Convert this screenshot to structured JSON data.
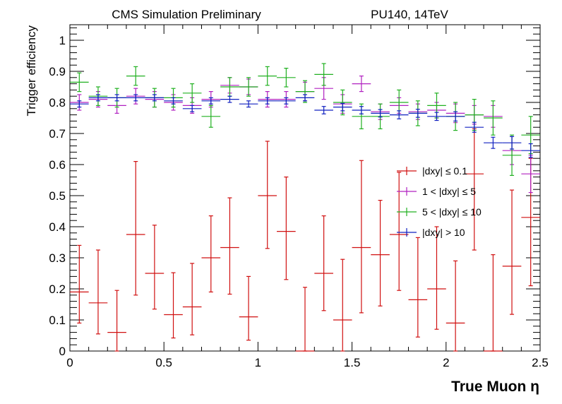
{
  "header": {
    "left": "CMS Simulation Preliminary",
    "right": "PU140, 14TeV"
  },
  "chart_data": {
    "type": "scatter",
    "xlabel": "True Muon  η",
    "ylabel": "Trigger efficiency",
    "xlim": [
      0,
      2.5
    ],
    "ylim": [
      0,
      1.05
    ],
    "x_ticks": [
      "0",
      "0.5",
      "1",
      "1.5",
      "2",
      "2.5"
    ],
    "y_ticks": [
      "0",
      "0.1",
      "0.2",
      "0.3",
      "0.4",
      "0.5",
      "0.6",
      "0.7",
      "0.8",
      "0.9",
      "1"
    ],
    "x": [
      0.05,
      0.15,
      0.25,
      0.35,
      0.45,
      0.55,
      0.65,
      0.75,
      0.85,
      0.95,
      1.05,
      1.15,
      1.25,
      1.35,
      1.45,
      1.55,
      1.65,
      1.75,
      1.85,
      1.95,
      2.05,
      2.15,
      2.25,
      2.35,
      2.45
    ],
    "bin_half_width": 0.05,
    "grid": false,
    "legend_position": "right-middle",
    "series": [
      {
        "name": "|dxy| ≤ 0.1",
        "color": "#d01010",
        "values": [
          0.19,
          0.155,
          0.06,
          0.375,
          0.25,
          0.117,
          0.142,
          0.3,
          0.333,
          0.11,
          0.5,
          0.385,
          0.0,
          0.25,
          0.1,
          0.333,
          0.31,
          0.375,
          0.165,
          0.2,
          0.09,
          0.57,
          0.0,
          0.273,
          0.43
        ],
        "err_low": [
          0.1,
          0.1,
          0.06,
          0.195,
          0.115,
          0.075,
          0.09,
          0.11,
          0.15,
          0.075,
          0.17,
          0.155,
          0.0,
          0.12,
          0.1,
          0.21,
          0.165,
          0.18,
          0.12,
          0.13,
          0.09,
          0.245,
          0.0,
          0.155,
          0.22
        ],
        "err_high": [
          0.15,
          0.17,
          0.135,
          0.235,
          0.155,
          0.135,
          0.14,
          0.135,
          0.16,
          0.13,
          0.175,
          0.175,
          0.205,
          0.185,
          0.195,
          0.28,
          0.175,
          0.2,
          0.2,
          0.2,
          0.2,
          0.145,
          0.31,
          0.245,
          0.19
        ]
      },
      {
        "name": "1 < |dxy| ≤ 5",
        "color": "#b020c0",
        "values": [
          0.8,
          0.81,
          0.79,
          0.82,
          0.81,
          0.8,
          0.79,
          0.81,
          0.855,
          0.85,
          0.81,
          0.81,
          0.835,
          0.845,
          0.795,
          0.86,
          0.77,
          0.79,
          0.77,
          0.775,
          0.765,
          0.76,
          0.755,
          0.645,
          0.57
        ],
        "err_low": [
          0.025,
          0.025,
          0.025,
          0.025,
          0.025,
          0.025,
          0.025,
          0.025,
          0.025,
          0.025,
          0.025,
          0.025,
          0.03,
          0.035,
          0.03,
          0.025,
          0.025,
          0.025,
          0.025,
          0.025,
          0.03,
          0.03,
          0.035,
          0.045,
          0.06
        ],
        "err_high": [
          0.025,
          0.025,
          0.025,
          0.025,
          0.025,
          0.025,
          0.025,
          0.025,
          0.025,
          0.025,
          0.025,
          0.025,
          0.03,
          0.035,
          0.03,
          0.025,
          0.025,
          0.025,
          0.025,
          0.025,
          0.03,
          0.03,
          0.035,
          0.045,
          0.06
        ]
      },
      {
        "name": "5 < |dxy| ≤ 10",
        "color": "#20b020",
        "values": [
          0.865,
          0.82,
          0.815,
          0.885,
          0.815,
          0.815,
          0.83,
          0.755,
          0.85,
          0.85,
          0.885,
          0.88,
          0.835,
          0.89,
          0.8,
          0.755,
          0.755,
          0.8,
          0.765,
          0.79,
          0.755,
          0.76,
          0.75,
          0.63,
          0.695
        ],
        "err_low": [
          0.03,
          0.03,
          0.03,
          0.03,
          0.03,
          0.03,
          0.03,
          0.035,
          0.03,
          0.03,
          0.03,
          0.03,
          0.035,
          0.035,
          0.04,
          0.04,
          0.04,
          0.04,
          0.04,
          0.04,
          0.045,
          0.05,
          0.055,
          0.065,
          0.06
        ],
        "err_high": [
          0.03,
          0.03,
          0.03,
          0.03,
          0.03,
          0.03,
          0.03,
          0.035,
          0.03,
          0.03,
          0.03,
          0.03,
          0.035,
          0.035,
          0.04,
          0.04,
          0.04,
          0.04,
          0.04,
          0.04,
          0.045,
          0.05,
          0.055,
          0.065,
          0.06
        ]
      },
      {
        "name": "|dxy| > 10",
        "color": "#1020c0",
        "values": [
          0.795,
          0.815,
          0.815,
          0.815,
          0.815,
          0.805,
          0.78,
          0.805,
          0.81,
          0.795,
          0.805,
          0.805,
          0.815,
          0.775,
          0.785,
          0.775,
          0.765,
          0.76,
          0.765,
          0.755,
          0.755,
          0.72,
          0.67,
          0.67,
          0.645
        ],
        "err_low": [
          0.01,
          0.01,
          0.01,
          0.01,
          0.01,
          0.01,
          0.01,
          0.01,
          0.01,
          0.01,
          0.01,
          0.01,
          0.01,
          0.012,
          0.012,
          0.012,
          0.012,
          0.013,
          0.013,
          0.013,
          0.015,
          0.016,
          0.018,
          0.02,
          0.022
        ],
        "err_high": [
          0.01,
          0.01,
          0.01,
          0.01,
          0.01,
          0.01,
          0.01,
          0.01,
          0.01,
          0.01,
          0.01,
          0.01,
          0.01,
          0.012,
          0.012,
          0.012,
          0.012,
          0.013,
          0.013,
          0.013,
          0.015,
          0.016,
          0.018,
          0.02,
          0.022
        ]
      }
    ]
  }
}
